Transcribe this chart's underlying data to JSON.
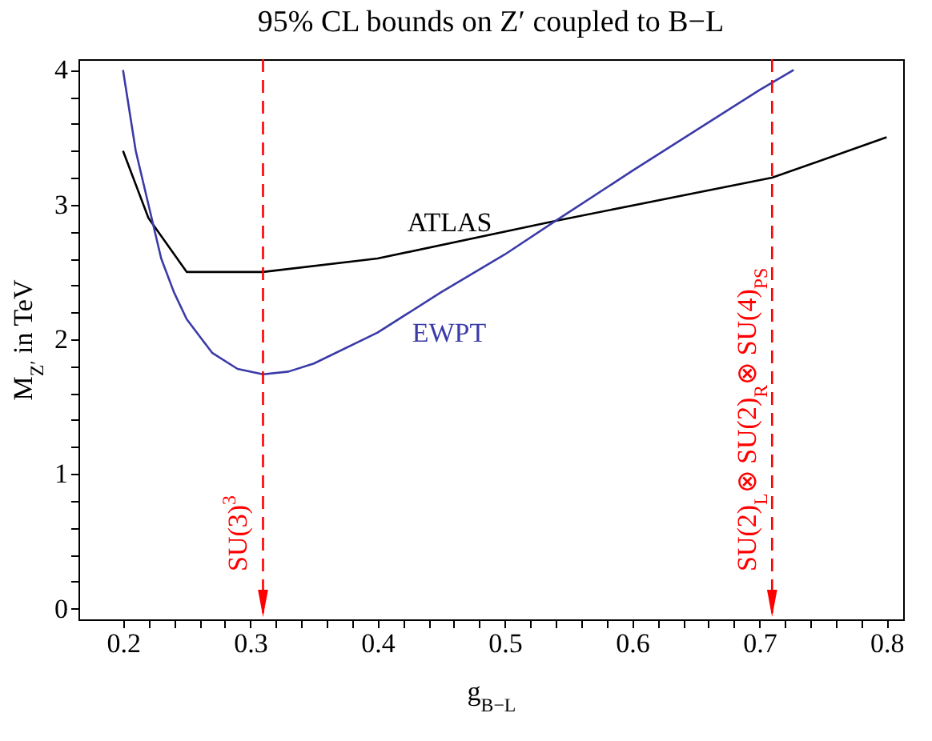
{
  "chart_data": {
    "type": "line",
    "title": "95% CL bounds on Z′ coupled to B−L",
    "xlabel": "g$_{B−L}$",
    "ylabel": "M$_{Z′}$ in TeV",
    "xlim": [
      0.165,
      0.813
    ],
    "ylim": [
      -0.08,
      4.08
    ],
    "xticks": [
      0.2,
      {
        "value": 0.22,
        "label": null
      },
      {
        "value": 0.24,
        "label": null
      },
      {
        "value": 0.26,
        "label": null
      },
      {
        "value": 0.28,
        "label": null
      },
      0.3,
      {
        "value": 0.32,
        "label": null
      },
      {
        "value": 0.34,
        "label": null
      },
      {
        "value": 0.36,
        "label": null
      },
      {
        "value": 0.38,
        "label": null
      },
      0.4,
      {
        "value": 0.42,
        "label": null
      },
      {
        "value": 0.44,
        "label": null
      },
      {
        "value": 0.46,
        "label": null
      },
      {
        "value": 0.48,
        "label": null
      },
      0.5,
      {
        "value": 0.52,
        "label": null
      },
      {
        "value": 0.54,
        "label": null
      },
      {
        "value": 0.56,
        "label": null
      },
      {
        "value": 0.58,
        "label": null
      },
      0.6,
      {
        "value": 0.62,
        "label": null
      },
      {
        "value": 0.64,
        "label": null
      },
      {
        "value": 0.66,
        "label": null
      },
      {
        "value": 0.68,
        "label": null
      },
      0.7,
      {
        "value": 0.72,
        "label": null
      },
      {
        "value": 0.74,
        "label": null
      },
      {
        "value": 0.76,
        "label": null
      },
      {
        "value": 0.78,
        "label": null
      },
      0.8
    ],
    "yticks": [
      0,
      {
        "value": 0.2,
        "label": null
      },
      {
        "value": 0.4,
        "label": null
      },
      {
        "value": 0.6,
        "label": null
      },
      {
        "value": 0.8,
        "label": null
      },
      1,
      {
        "value": 1.2,
        "label": null
      },
      {
        "value": 1.4,
        "label": null
      },
      {
        "value": 1.6,
        "label": null
      },
      {
        "value": 1.8,
        "label": null
      },
      2,
      {
        "value": 2.2,
        "label": null
      },
      {
        "value": 2.4,
        "label": null
      },
      {
        "value": 2.6,
        "label": null
      },
      {
        "value": 2.8,
        "label": null
      },
      3,
      {
        "value": 3.2,
        "label": null
      },
      {
        "value": 3.4,
        "label": null
      },
      {
        "value": 3.6,
        "label": null
      },
      {
        "value": 3.8,
        "label": null
      },
      4
    ],
    "series": [
      {
        "name": "ATLAS",
        "color": "#000000",
        "x": [
          0.2,
          0.22,
          0.25,
          0.31,
          0.4,
          0.54,
          0.71,
          0.8
        ],
        "values": [
          3.4,
          2.9,
          2.5,
          2.5,
          2.6,
          2.88,
          3.2,
          3.5
        ]
      },
      {
        "name": "EWPT",
        "color": "#3b3ba8",
        "x": [
          0.2,
          0.21,
          0.22,
          0.23,
          0.24,
          0.25,
          0.27,
          0.29,
          0.31,
          0.33,
          0.35,
          0.4,
          0.45,
          0.5,
          0.54,
          0.6,
          0.65,
          0.7,
          0.727
        ],
        "values": [
          4.0,
          3.4,
          3.0,
          2.6,
          2.35,
          2.15,
          1.9,
          1.78,
          1.74,
          1.76,
          1.82,
          2.05,
          2.35,
          2.63,
          2.88,
          3.25,
          3.55,
          3.85,
          4.0
        ]
      }
    ],
    "ref_lines": [
      {
        "axis": "x",
        "value": 0.31,
        "label": "SU(3)$^{3}$",
        "color": "#ff0000",
        "line_style": "dashed"
      },
      {
        "axis": "x",
        "value": 0.71,
        "label": "SU(2)$_{L}$⊗ SU(2)$_{R}$⊗ SU(4)$_{PS}$",
        "color": "#ff0000",
        "line_style": "dashed"
      }
    ]
  }
}
